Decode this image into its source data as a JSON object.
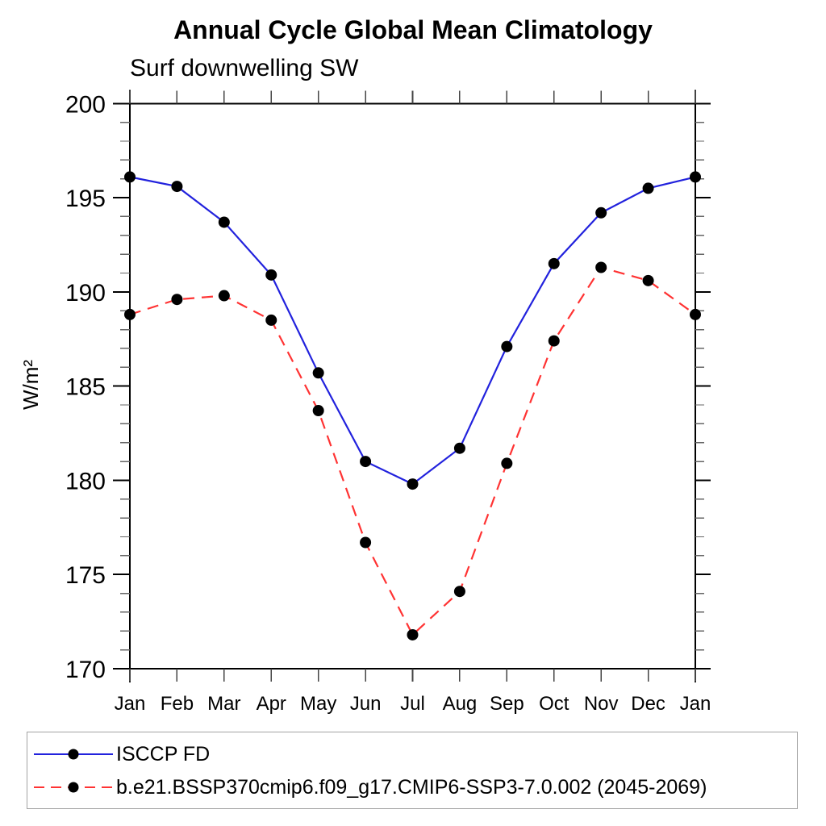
{
  "chart_data": {
    "type": "line",
    "title": "Annual Cycle Global Mean Climatology",
    "subtitle": "Surf downwelling SW",
    "ylabel": "W/m²",
    "xlabel": "",
    "categories": [
      "Jan",
      "Feb",
      "Mar",
      "Apr",
      "May",
      "Jun",
      "Jul",
      "Aug",
      "Sep",
      "Oct",
      "Nov",
      "Dec",
      "Jan"
    ],
    "ylim": [
      170,
      200
    ],
    "y_major_ticks": [
      170,
      175,
      180,
      185,
      190,
      195,
      200
    ],
    "y_minor_step": 1,
    "grid": false,
    "legend_position": "bottom box, full width, left-aligned entries",
    "series": [
      {
        "name": "ISCCP FD",
        "line_style": "solid",
        "color": "#2222dd",
        "marker": "filled-circle",
        "marker_color": "#000000",
        "values": [
          196.1,
          195.6,
          193.7,
          190.9,
          185.7,
          181.0,
          179.8,
          181.7,
          187.1,
          191.5,
          194.2,
          195.5,
          196.1
        ]
      },
      {
        "name": "b.e21.BSSP370cmip6.f09_g17.CMIP6-SSP3-7.0.002 (2045-2069)",
        "line_style": "dashed",
        "color": "#ff3333",
        "marker": "filled-circle",
        "marker_color": "#000000",
        "values": [
          188.8,
          189.6,
          189.8,
          188.5,
          183.7,
          176.7,
          171.8,
          174.1,
          180.9,
          187.4,
          191.3,
          190.6,
          188.8
        ]
      }
    ]
  },
  "colors": {
    "axis": "#000000",
    "minor_tick": "#666666",
    "month_tick": "#444444",
    "text": "#000000",
    "legend_border": "#a3a3a3",
    "background": "#ffffff"
  }
}
